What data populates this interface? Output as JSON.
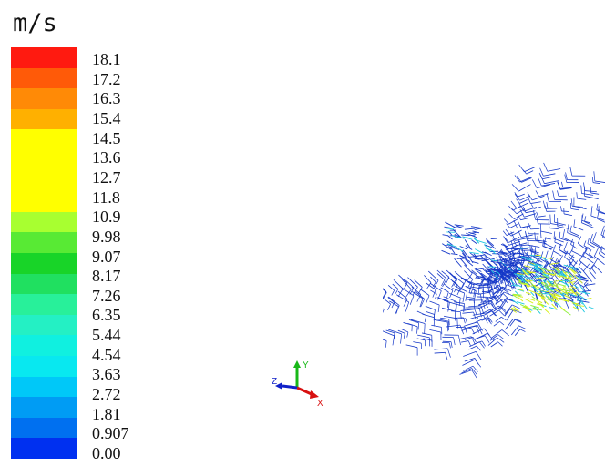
{
  "legend": {
    "unit": "m/s",
    "levels": [
      "18.1",
      "17.2",
      "16.3",
      "15.4",
      "14.5",
      "13.6",
      "12.7",
      "11.8",
      "10.9",
      "9.98",
      "9.07",
      "8.17",
      "7.26",
      "6.35",
      "5.44",
      "4.54",
      "3.63",
      "2.72",
      "1.81",
      "0.907",
      "0.00"
    ],
    "colors": [
      "#ff1a10",
      "#ff5a08",
      "#ff8a06",
      "#ffb000",
      "#ffff00",
      "#ffff00",
      "#ffff00",
      "#ffff00",
      "#a8ff30",
      "#58ea34",
      "#18d428",
      "#20e060",
      "#28f09a",
      "#24f0c4",
      "#10f0e0",
      "#08e8f0",
      "#00c8f8",
      "#009cf4",
      "#0070f0",
      "#0030f0"
    ]
  },
  "axes": {
    "x": "X",
    "y": "Y",
    "z": "Z"
  },
  "colors": {
    "background": "#ffffff",
    "vector_blue": "#1638c8",
    "vector_cyan": "#20c8e0",
    "vector_yellow": "#d8f020"
  }
}
